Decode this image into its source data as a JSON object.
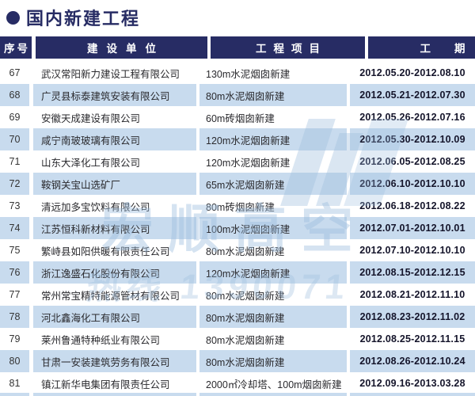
{
  "page": {
    "title": "国内新建工程",
    "accent_color": "#272c64",
    "stripe_color": "#c8dbee",
    "watermark_color": "#9dbede"
  },
  "watermark": {
    "logo_text": "宏顺高空",
    "hotline_text": "热线 1390071"
  },
  "table": {
    "columns": [
      {
        "key": "no",
        "label": "序号"
      },
      {
        "key": "company",
        "label": "建设单位"
      },
      {
        "key": "project",
        "label": "工程项目"
      },
      {
        "key": "period",
        "label": "工期"
      }
    ],
    "rows": [
      {
        "no": "67",
        "company": "武汉常阳新力建设工程有限公司",
        "project": "130m水泥烟囱新建",
        "period": "2012.05.20-2012.08.10"
      },
      {
        "no": "68",
        "company": "广灵县标泰建筑安装有限公司",
        "project": "80m水泥烟囱新建",
        "period": "2012.05.21-2012.07.30"
      },
      {
        "no": "69",
        "company": "安徽天成建设有限公司",
        "project": "60m砖烟囱新建",
        "period": "2012.05.26-2012.07.16"
      },
      {
        "no": "70",
        "company": "咸宁南玻玻璃有限公司",
        "project": "120m水泥烟囱新建",
        "period": "2012.05.30-2012.10.09"
      },
      {
        "no": "71",
        "company": "山东大泽化工有限公司",
        "project": "120m水泥烟囱新建",
        "period": "2012.06.05-2012.08.25"
      },
      {
        "no": "72",
        "company": "鞍钢关宝山选矿厂",
        "project": "65m水泥烟囱新建",
        "period": "2012.06.10-2012.10.10"
      },
      {
        "no": "73",
        "company": "清远加多宝饮料有限公司",
        "project": "80m砖烟囱新建",
        "period": "2012.06.18-2012.08.22"
      },
      {
        "no": "74",
        "company": "江苏恒科新材料有限公司",
        "project": "100m水泥烟囱新建",
        "period": "2012.07.01-2012.10.01"
      },
      {
        "no": "75",
        "company": "繁峙县如阳供暖有限责任公司",
        "project": "80m水泥烟囱新建",
        "period": "2012.07.10-2012.10.10"
      },
      {
        "no": "76",
        "company": "浙江逸盛石化股份有限公司",
        "project": "120m水泥烟囱新建",
        "period": "2012.08.15-2012.12.15"
      },
      {
        "no": "77",
        "company": "常州常宝精特能源管材有限公司",
        "project": "80m水泥烟囱新建",
        "period": "2012.08.21-2012.11.10"
      },
      {
        "no": "78",
        "company": "河北鑫海化工有限公司",
        "project": "80m水泥烟囱新建",
        "period": "2012.08.23-2012.11.02"
      },
      {
        "no": "79",
        "company": "莱州鲁通特种纸业有限公司",
        "project": "80m水泥烟囱新建",
        "period": "2012.08.25-2012.11.15"
      },
      {
        "no": "80",
        "company": "甘肃一安装建筑劳务有限公司",
        "project": "80m水泥烟囱新建",
        "period": "2012.08.26-2012.10.24"
      },
      {
        "no": "81",
        "company": "镇江新华电集团有限责任公司",
        "project": "2000㎡冷却塔、100m烟囱新建",
        "period": "2012.09.16-2013.03.28"
      }
    ]
  }
}
